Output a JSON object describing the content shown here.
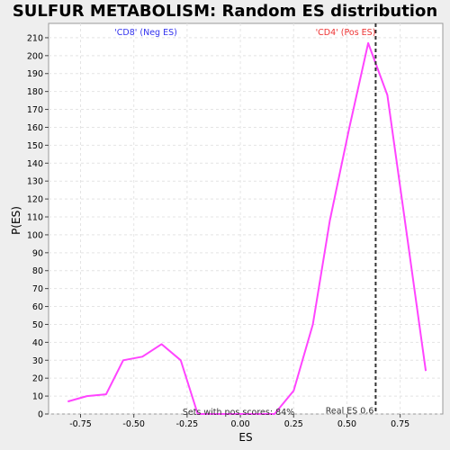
{
  "chart_data": {
    "type": "line",
    "title": "SULFUR METABOLISM: Random ES distribution",
    "xlabel": "ES",
    "ylabel": "P(ES)",
    "xlim": [
      -0.9,
      0.95
    ],
    "ylim": [
      0,
      218
    ],
    "x_ticks": [
      "-0.75",
      "-0.50",
      "-0.25",
      "0.00",
      "0.25",
      "0.50",
      "0.75"
    ],
    "x_tick_values": [
      -0.75,
      -0.5,
      -0.25,
      0.0,
      0.25,
      0.5,
      0.75
    ],
    "y_ticks": [
      "0",
      "10",
      "20",
      "30",
      "40",
      "50",
      "60",
      "70",
      "80",
      "90",
      "100",
      "110",
      "120",
      "130",
      "140",
      "150",
      "160",
      "170",
      "180",
      "190",
      "200",
      "210"
    ],
    "y_tick_values": [
      0,
      10,
      20,
      30,
      40,
      50,
      60,
      70,
      80,
      90,
      100,
      110,
      120,
      130,
      140,
      150,
      160,
      170,
      180,
      190,
      200,
      210
    ],
    "grid": true,
    "series": [
      {
        "color": "#ff44ff",
        "x": [
          -0.81,
          -0.72,
          -0.63,
          -0.55,
          -0.46,
          -0.37,
          -0.28,
          -0.2,
          0.16,
          0.25,
          0.34,
          0.42,
          0.51,
          0.6,
          0.69,
          0.78,
          0.87
        ],
        "y": [
          7,
          10,
          11,
          30,
          32,
          39,
          30,
          0,
          0,
          13,
          50,
          108,
          159,
          207,
          178,
          101,
          24
        ]
      }
    ],
    "real_es": {
      "x": 0.635,
      "label": "Real ES 0.6",
      "color": "#333333"
    },
    "annotations": {
      "neg": {
        "text": "'CD8' (Neg ES)",
        "color": "#3333ee"
      },
      "pos": {
        "text": "'CD4' (Pos ES)",
        "color": "#ee3333"
      },
      "sets": {
        "text": "Sets with pos scores: 84%",
        "color": "#333333"
      }
    }
  }
}
